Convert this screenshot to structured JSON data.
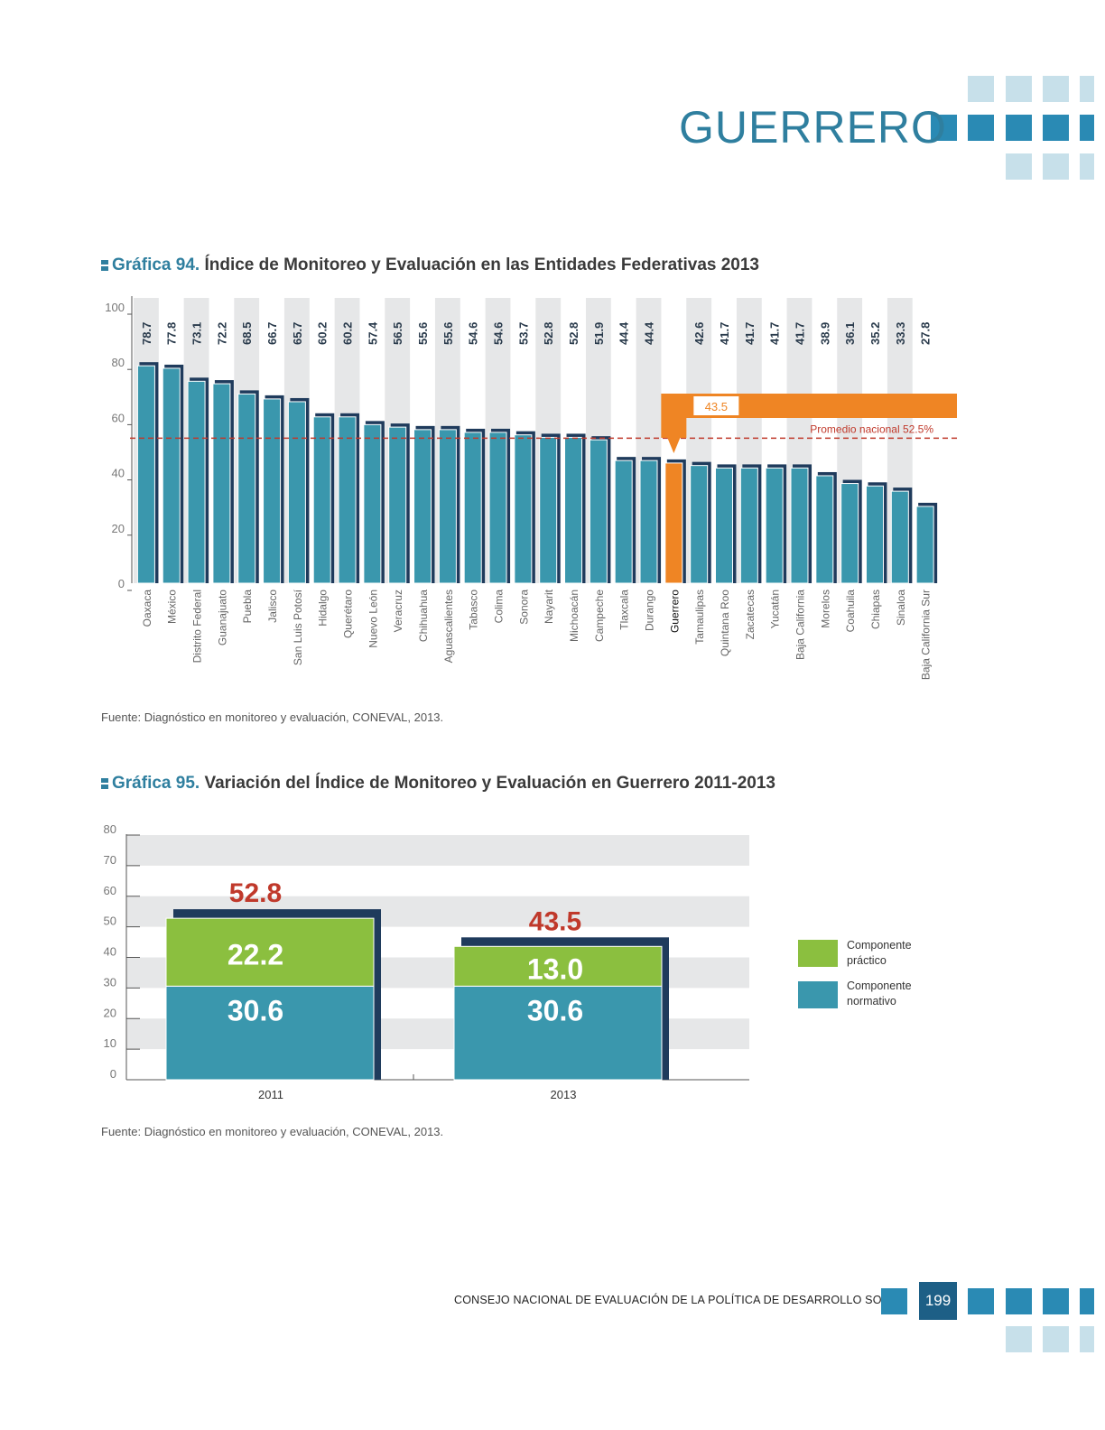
{
  "page": {
    "title": "GUERRERO",
    "footer": "CONSEJO NACIONAL DE EVALUACIÓN DE LA POLÍTICA DE DESARROLLO SOCIAL",
    "page_number": "199",
    "colors": {
      "accent": "#2f7f9f",
      "bar": "#3a97ad",
      "highlight": "#ef8524",
      "green": "#8bbf3f",
      "red": "#c0392b"
    }
  },
  "chart94": {
    "number": "Gráfica 94.",
    "name": "Índice de Monitoreo y Evaluación en las Entidades Federativas 2013",
    "source": "Fuente: Diagnóstico en monitoreo y evaluación, CONEVAL, 2013.",
    "highlight_label": "43.5",
    "average_label": "Promedio nacional 52.5%"
  },
  "chart95": {
    "number": "Gráfica 95.",
    "name": "Variación del Índice de Monitoreo y Evaluación en Guerrero 2011-2013",
    "source": "Fuente: Diagnóstico en monitoreo y evaluación, CONEVAL, 2013.",
    "legend": [
      {
        "label": "Componente práctico",
        "color": "#8bbf3f"
      },
      {
        "label": "Componente normativo",
        "color": "#3a97ad"
      }
    ]
  },
  "chart_data": [
    {
      "type": "bar",
      "categories": [
        "Oaxaca",
        "México",
        "Distrito Federal",
        "Guanajuato",
        "Puebla",
        "Jalisco",
        "San Luis Potosí",
        "Hidalgo",
        "Querétaro",
        "Nuevo León",
        "Veracruz",
        "Chihuahua",
        "Aguascalientes",
        "Tabasco",
        "Colima",
        "Sonora",
        "Nayarit",
        "Michoacán",
        "Campeche",
        "Tlaxcala",
        "Durango",
        "Guerrero",
        "Tamaulipas",
        "Quintana Roo",
        "Zacatecas",
        "Yucatán",
        "Baja California",
        "Morelos",
        "Coahuila",
        "Chiapas",
        "Sinaloa",
        "Baja California Sur"
      ],
      "values": [
        78.7,
        77.8,
        73.1,
        72.2,
        68.5,
        66.7,
        65.7,
        60.2,
        60.2,
        57.4,
        56.5,
        55.6,
        55.6,
        54.6,
        54.6,
        53.7,
        52.8,
        52.8,
        51.9,
        44.4,
        44.4,
        43.5,
        42.6,
        41.7,
        41.7,
        41.7,
        41.7,
        38.9,
        36.1,
        35.2,
        33.3,
        27.8
      ],
      "value_labels": [
        "78.7",
        "77.8",
        "73.1",
        "72.2",
        "68.5",
        "66.7",
        "65.7",
        "60.2",
        "60.2",
        "57.4",
        "56.5",
        "55.6",
        "55.6",
        "54.6",
        "54.6",
        "53.7",
        "52.8",
        "52.8",
        "51.9",
        "44.4",
        "44.4",
        "",
        "42.6",
        "41.7",
        "41.7",
        "41.7",
        "41.7",
        "38.9",
        "36.1",
        "35.2",
        "33.3",
        "27.8"
      ],
      "highlight": "Guerrero",
      "reference_line": 52.5,
      "ylim": [
        0,
        100
      ],
      "yticks": [
        "0",
        "20",
        "40",
        "60",
        "80",
        "100"
      ]
    },
    {
      "type": "bar",
      "stacked": true,
      "categories": [
        "2011",
        "2013"
      ],
      "series": [
        {
          "name": "Componente normativo",
          "values": [
            30.6,
            30.6
          ],
          "labels": [
            "30.6",
            "30.6"
          ]
        },
        {
          "name": "Componente práctico",
          "values": [
            22.2,
            13.0
          ],
          "labels": [
            "22.2",
            "13.0"
          ]
        }
      ],
      "totals": [
        52.8,
        43.5
      ],
      "total_labels": [
        "52.8",
        "43.5"
      ],
      "ylim": [
        0,
        80
      ],
      "yticks": [
        "0",
        "10",
        "20",
        "30",
        "40",
        "50",
        "60",
        "70",
        "80"
      ]
    }
  ]
}
